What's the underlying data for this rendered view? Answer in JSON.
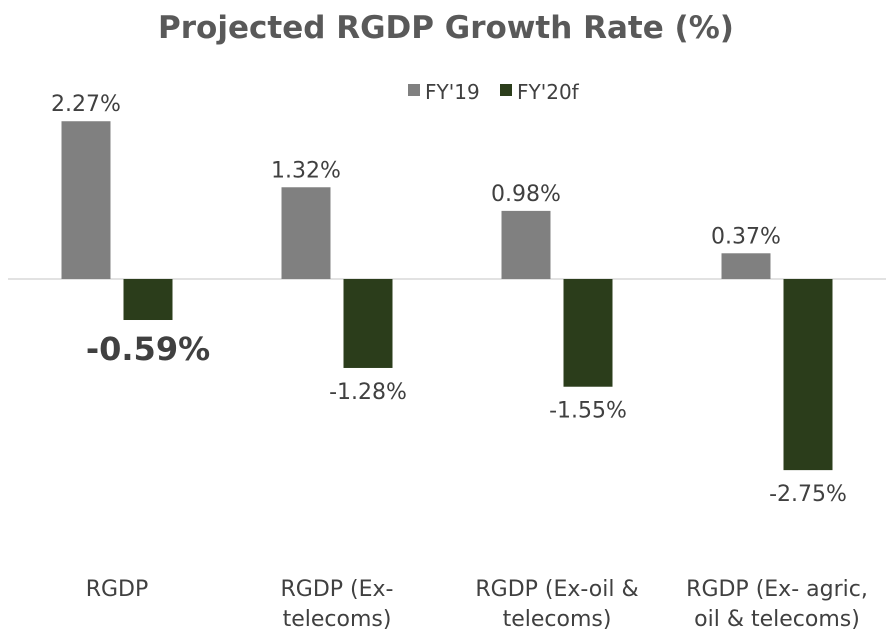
{
  "chart_data": {
    "type": "bar",
    "title": "Projected RGDP Growth Rate (%)",
    "categories": [
      [
        "RGDP"
      ],
      [
        "RGDP (Ex-",
        "telecoms)"
      ],
      [
        "RGDP (Ex-oil &",
        "telecoms)"
      ],
      [
        "RGDP (Ex- agric,",
        "oil & telecoms)"
      ]
    ],
    "series": [
      {
        "name": "FY'19",
        "color": "#808080",
        "values": [
          2.27,
          1.32,
          0.98,
          0.37
        ],
        "labels": [
          "2.27%",
          "1.32%",
          "0.98%",
          "0.37%"
        ]
      },
      {
        "name": "FY'20f",
        "color": "#2b3d1b",
        "values": [
          -0.59,
          -1.28,
          -1.55,
          -2.75
        ],
        "labels": [
          "-0.59%",
          "-1.28%",
          "-1.55%",
          "-2.75%"
        ]
      }
    ],
    "emphasized_label": {
      "series": 1,
      "index": 0
    },
    "legend_position": "top-center",
    "grid": false,
    "ylim": [
      -3.0,
      3.0
    ]
  }
}
